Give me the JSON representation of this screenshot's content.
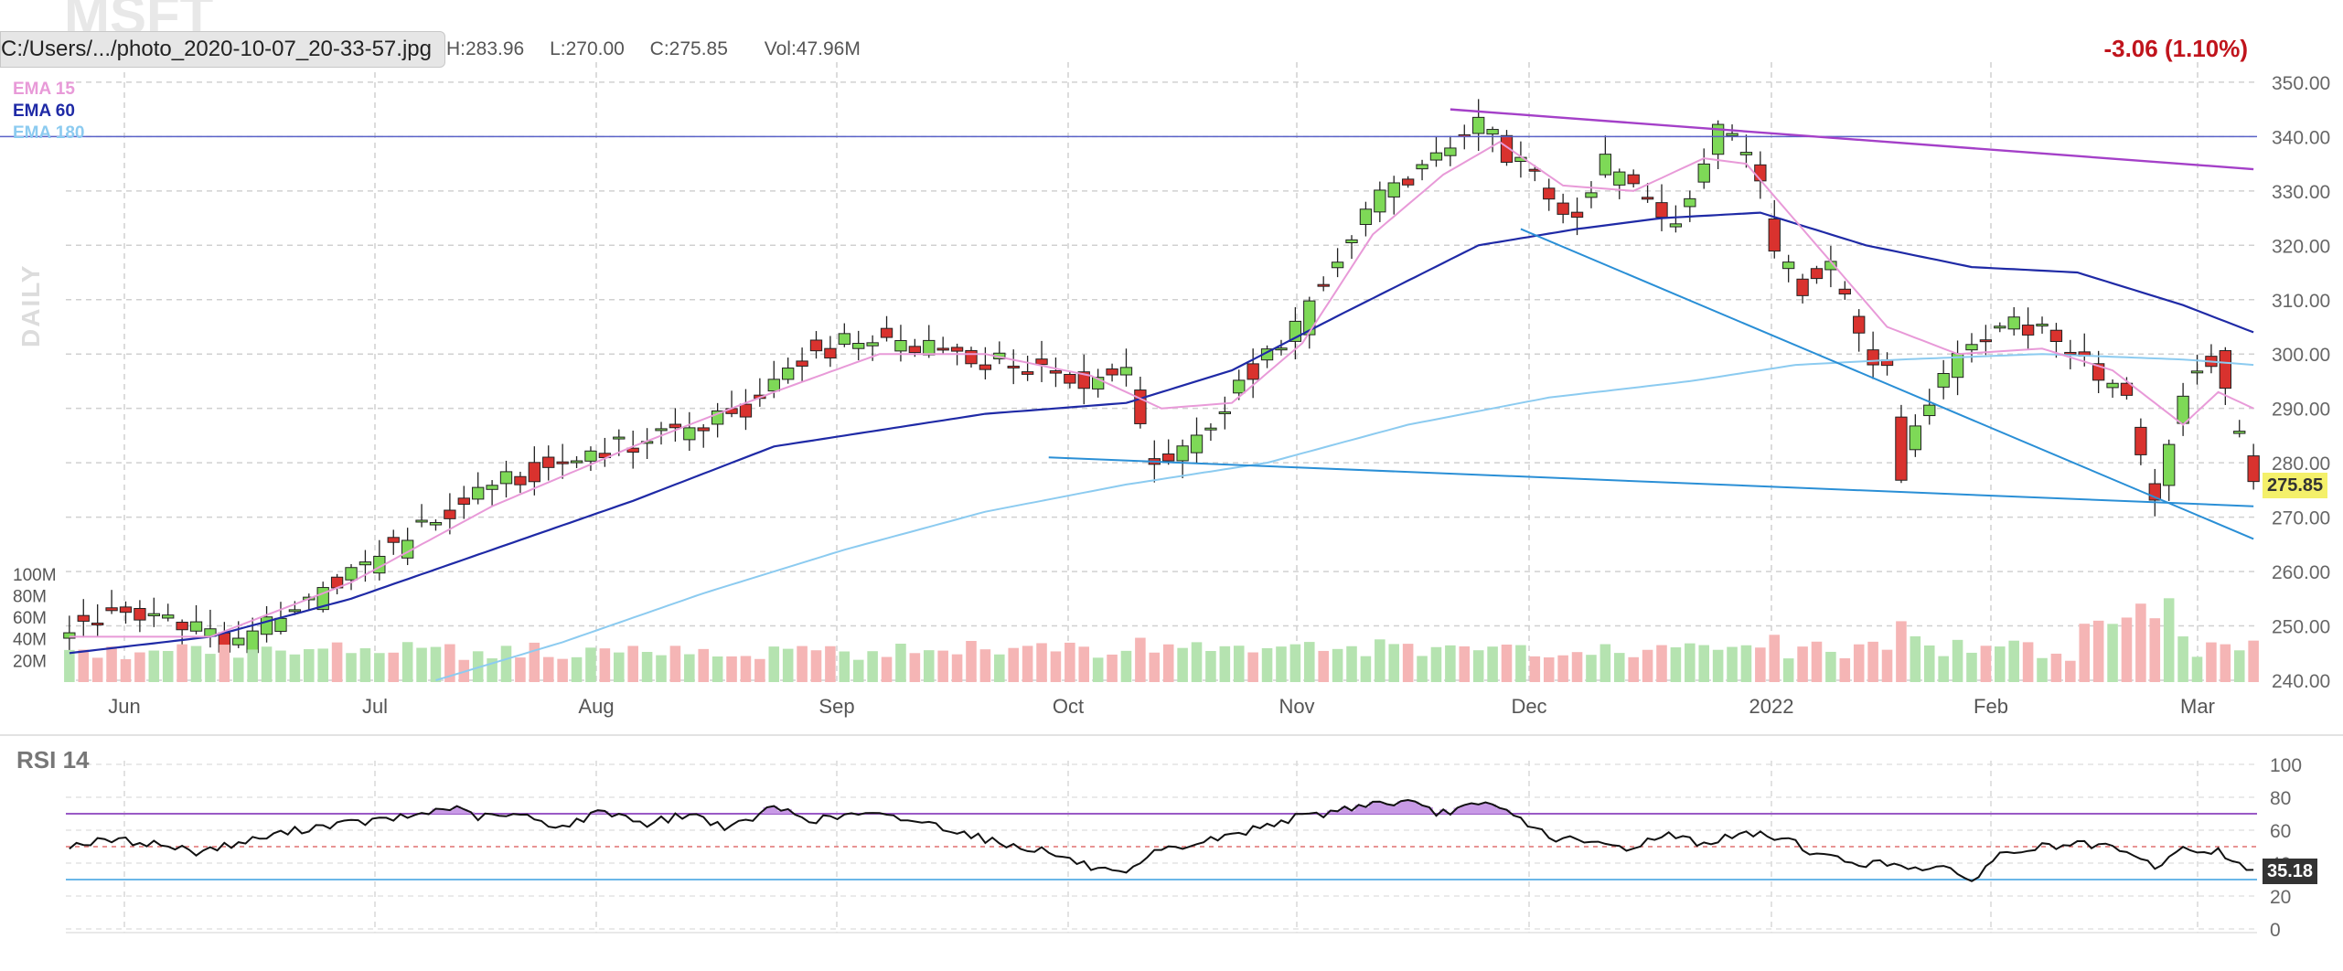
{
  "header": {
    "symbol": "MSFT",
    "file_path": "C:/Users/.../photo_2020-10-07_20-33-57.jpg",
    "high": "H:283.96",
    "low": "L:270.00",
    "close": "C:275.85",
    "volume": "Vol:47.96M",
    "change": "-3.06 (1.10%)",
    "period": "DAILY"
  },
  "colors": {
    "up": "#7ed957",
    "down": "#d9322e",
    "volume_up": "#b5e3b0",
    "volume_down": "#f5b5b5",
    "ema15": "#e89ad8",
    "ema60": "#1f2aa6",
    "ema180": "#8ccbf0",
    "trendline": "#2a8fd6",
    "resistance": "#a440c8",
    "hline": "#5a62c8",
    "rsi_line": "#111111",
    "rsi_overbought": "#9a5ac6",
    "rsi_oversold": "#6ab7e8",
    "change_text": "#c0141c",
    "last_price_bg": "#f4f06a",
    "last_rsi_bg": "#333333"
  },
  "legend": {
    "ema15": "EMA 15",
    "ema60": "EMA 60",
    "ema180": "EMA 180"
  },
  "rsi": {
    "title": "RSI 14",
    "last": "35.18"
  },
  "chart_data": [
    {
      "type": "candlestick",
      "title": "MSFT",
      "x_labels": [
        "Jun",
        "Jul",
        "Aug",
        "Sep",
        "Oct",
        "Nov",
        "Dec",
        "2022",
        "Feb",
        "Mar"
      ],
      "ylim": [
        240,
        352
      ],
      "y_ticks": [
        "240.00",
        "250.00",
        "260.00",
        "270.00",
        "280.00",
        "290.00",
        "300.00",
        "310.00",
        "320.00",
        "330.00",
        "340.00",
        "350.00"
      ],
      "last_price": "275.85",
      "horizontal_line": 340,
      "price_path": [
        [
          0,
          250
        ],
        [
          10,
          253
        ],
        [
          15,
          250
        ],
        [
          20,
          248
        ],
        [
          24,
          246
        ],
        [
          30,
          252
        ],
        [
          38,
          258
        ],
        [
          48,
          266
        ],
        [
          58,
          275
        ],
        [
          68,
          279
        ],
        [
          76,
          282
        ],
        [
          86,
          286
        ],
        [
          96,
          289
        ],
        [
          102,
          298
        ],
        [
          110,
          302
        ],
        [
          120,
          301
        ],
        [
          128,
          299
        ],
        [
          138,
          298
        ],
        [
          145,
          295
        ],
        [
          150,
          298
        ],
        [
          153,
          282
        ],
        [
          155,
          280
        ],
        [
          160,
          285
        ],
        [
          165,
          292
        ],
        [
          170,
          300
        ],
        [
          175,
          306
        ],
        [
          180,
          318
        ],
        [
          185,
          328
        ],
        [
          190,
          333
        ],
        [
          196,
          337
        ],
        [
          200,
          343
        ],
        [
          203,
          338
        ],
        [
          210,
          330
        ],
        [
          214,
          325
        ],
        [
          218,
          335
        ],
        [
          223,
          328
        ],
        [
          228,
          324
        ],
        [
          234,
          341
        ],
        [
          238,
          338
        ],
        [
          240,
          330
        ],
        [
          242,
          318
        ],
        [
          246,
          312
        ],
        [
          250,
          318
        ],
        [
          254,
          304
        ],
        [
          258,
          296
        ],
        [
          260,
          278
        ],
        [
          263,
          290
        ],
        [
          268,
          300
        ],
        [
          274,
          306
        ],
        [
          280,
          305
        ],
        [
          284,
          300
        ],
        [
          288,
          296
        ],
        [
          292,
          292
        ],
        [
          296,
          273
        ],
        [
          300,
          292
        ],
        [
          303,
          298
        ],
        [
          305,
          298
        ],
        [
          307,
          288
        ],
        [
          310,
          276
        ]
      ],
      "ema15": [
        [
          0,
          248
        ],
        [
          20,
          248
        ],
        [
          40,
          258
        ],
        [
          60,
          272
        ],
        [
          80,
          283
        ],
        [
          100,
          293
        ],
        [
          115,
          300
        ],
        [
          130,
          300
        ],
        [
          145,
          296
        ],
        [
          155,
          290
        ],
        [
          165,
          291
        ],
        [
          175,
          302
        ],
        [
          185,
          322
        ],
        [
          195,
          333
        ],
        [
          203,
          339
        ],
        [
          212,
          331
        ],
        [
          222,
          330
        ],
        [
          232,
          336
        ],
        [
          238,
          335
        ],
        [
          248,
          320
        ],
        [
          258,
          305
        ],
        [
          268,
          300
        ],
        [
          280,
          301
        ],
        [
          290,
          297
        ],
        [
          300,
          287
        ],
        [
          305,
          293
        ],
        [
          310,
          290
        ]
      ],
      "ema60": [
        [
          0,
          245
        ],
        [
          20,
          248
        ],
        [
          40,
          255
        ],
        [
          60,
          264
        ],
        [
          80,
          273
        ],
        [
          100,
          283
        ],
        [
          130,
          289
        ],
        [
          150,
          291
        ],
        [
          165,
          297
        ],
        [
          180,
          307
        ],
        [
          200,
          320
        ],
        [
          214,
          323
        ],
        [
          226,
          325
        ],
        [
          240,
          326
        ],
        [
          255,
          320
        ],
        [
          270,
          316
        ],
        [
          285,
          315
        ],
        [
          300,
          309
        ],
        [
          310,
          304
        ]
      ],
      "ema180": [
        [
          52,
          240
        ],
        [
          70,
          247
        ],
        [
          90,
          256
        ],
        [
          110,
          264
        ],
        [
          130,
          271
        ],
        [
          150,
          276
        ],
        [
          170,
          280
        ],
        [
          190,
          287
        ],
        [
          210,
          292
        ],
        [
          230,
          295
        ],
        [
          245,
          298
        ],
        [
          260,
          299
        ],
        [
          280,
          300
        ],
        [
          300,
          299
        ],
        [
          310,
          298
        ]
      ],
      "trendlines": [
        {
          "from": [
            139,
            281
          ],
          "to": [
            310,
            272
          ]
        },
        {
          "from": [
            206,
            323
          ],
          "to": [
            310,
            266
          ]
        }
      ],
      "resistance_line": {
        "from": [
          196,
          345
        ],
        "to": [
          310,
          334
        ]
      },
      "volume_ylim": [
        0,
        110
      ],
      "volume_ticks": [
        "20M",
        "40M",
        "60M",
        "80M",
        "100M"
      ]
    },
    {
      "type": "line",
      "title": "RSI 14",
      "ylim": [
        0,
        100
      ],
      "y_ticks": [
        "0",
        "20",
        "40",
        "60",
        "80",
        "100"
      ],
      "overbought": 70,
      "oversold": 30,
      "last_value": "35.18",
      "path": [
        [
          0,
          51
        ],
        [
          6,
          54
        ],
        [
          12,
          52
        ],
        [
          18,
          47
        ],
        [
          24,
          52
        ],
        [
          30,
          58
        ],
        [
          36,
          63
        ],
        [
          42,
          65
        ],
        [
          48,
          68
        ],
        [
          54,
          74
        ],
        [
          58,
          68
        ],
        [
          64,
          69
        ],
        [
          70,
          62
        ],
        [
          76,
          72
        ],
        [
          82,
          64
        ],
        [
          88,
          70
        ],
        [
          94,
          61
        ],
        [
          100,
          74
        ],
        [
          106,
          66
        ],
        [
          112,
          70
        ],
        [
          120,
          66
        ],
        [
          126,
          60
        ],
        [
          132,
          52
        ],
        [
          138,
          48
        ],
        [
          142,
          42
        ],
        [
          146,
          36
        ],
        [
          150,
          32
        ],
        [
          154,
          46
        ],
        [
          160,
          52
        ],
        [
          166,
          58
        ],
        [
          172,
          66
        ],
        [
          178,
          70
        ],
        [
          184,
          76
        ],
        [
          190,
          77
        ],
        [
          194,
          70
        ],
        [
          198,
          74
        ],
        [
          202,
          75
        ],
        [
          206,
          67
        ],
        [
          210,
          56
        ],
        [
          216,
          52
        ],
        [
          222,
          49
        ],
        [
          226,
          58
        ],
        [
          232,
          52
        ],
        [
          238,
          58
        ],
        [
          244,
          55
        ],
        [
          248,
          45
        ],
        [
          254,
          40
        ],
        [
          260,
          39
        ],
        [
          266,
          36
        ],
        [
          270,
          30
        ],
        [
          274,
          45
        ],
        [
          280,
          50
        ],
        [
          286,
          51
        ],
        [
          290,
          49
        ],
        [
          296,
          38
        ],
        [
          300,
          48
        ],
        [
          305,
          47
        ],
        [
          310,
          35
        ]
      ]
    }
  ]
}
